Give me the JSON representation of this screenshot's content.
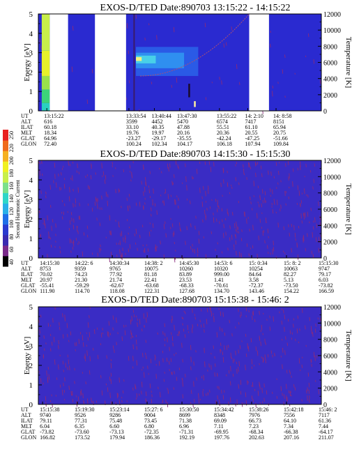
{
  "colorbar": {
    "label": "Second Harmonic Current",
    "ticks": [
      "40",
      "60",
      "80",
      "100",
      "120",
      "140",
      "160",
      "180",
      "200",
      "220",
      "250"
    ],
    "colors": [
      "#000000",
      "#7a2a8a",
      "#3a2ab0",
      "#2a3acf",
      "#1f6fe8",
      "#29b0e8",
      "#2fd6c8",
      "#7ce08a",
      "#c8ef4a",
      "#f0f020",
      "#f5b020",
      "#ef6a1a",
      "#e82020"
    ]
  },
  "chart_data": [
    {
      "type": "heatmap",
      "title": "EXOS-D/TED   Date:890703  13:15:22 - 14:15:22",
      "ylabel": "Energy [eV]",
      "y2label": "Temperature [K]",
      "ylim": [
        0,
        5
      ],
      "y2lim": [
        0,
        12000
      ],
      "yticks": [
        "0",
        "1",
        "2",
        "3",
        "4",
        "5"
      ],
      "y2ticks": [
        "0",
        "2000",
        "4000",
        "6000",
        "8000",
        "10000",
        "12000"
      ],
      "data_gaps": [
        [
          0.04,
          0.105
        ],
        [
          0.2,
          0.31
        ],
        [
          0.745,
          0.815
        ]
      ],
      "background_color": "#2a2ad0",
      "ephemeris": {
        "labels": [
          "UT",
          "ALT",
          "ILAT",
          "MLT",
          "GLAT",
          "GLON"
        ],
        "columns": [
          [
            "13:15:22",
            "616",
            "60.18",
            "18.34",
            "64.96",
            "72.40"
          ],
          [
            "13:33:54",
            "3599",
            "33.10",
            "19.76",
            "-23.27",
            "100.24"
          ],
          [
            "13:40:44",
            "4452",
            "40.35",
            "19.97",
            "-29.17",
            "102.34"
          ],
          [
            "13:47:30",
            "5470",
            "47.88",
            "20.16",
            "-35.55",
            "104.17"
          ],
          [
            "13:55:22",
            "6574",
            "55.51",
            "20.36",
            "-42.24",
            "106.18"
          ],
          [
            "14: 2:10",
            "7417",
            "61.10",
            "20.55",
            "-47.25",
            "107.94"
          ],
          [
            "14: 8:58",
            "8151",
            "65.94",
            "20.75",
            "-51.66",
            "109.84"
          ]
        ]
      }
    },
    {
      "type": "heatmap",
      "title": "EXOS-D/TED   Date:890703  14:15:30 - 15:15:30",
      "ylabel": "Energy [eV]",
      "y2label": "Temperature [K]",
      "ylim": [
        0,
        5
      ],
      "y2lim": [
        0,
        12000
      ],
      "yticks": [
        "0",
        "1",
        "2",
        "3",
        "4",
        "5"
      ],
      "y2ticks": [
        "0",
        "2000",
        "4000",
        "6000",
        "8000",
        "10000",
        "12000"
      ],
      "background_color": "#3a2cc4",
      "ephemeris": {
        "labels": [
          "UT",
          "ALT",
          "ILAT",
          "MLT",
          "GLAT",
          "GLON"
        ],
        "columns": [
          [
            "14:15:30",
            "8753",
            "70.02",
            "20.97",
            "-55.41",
            "111.90"
          ],
          [
            "14:22: 6",
            "9359",
            "74.23",
            "21.30",
            "-59.29",
            "114.70"
          ],
          [
            "14:30:34",
            "9765",
            "77.92",
            "21.74",
            "-62.67",
            "118.08"
          ],
          [
            "14:38: 2",
            "10075",
            "81.18",
            "22.41",
            "-63.68",
            "122.31"
          ],
          [
            "14:45:30",
            "10260",
            "83.89",
            "23.53",
            "-68.33",
            "127.68"
          ],
          [
            "14:53: 6",
            "10320",
            "999.00",
            "1.41",
            "-70.61",
            "134.70"
          ],
          [
            "15: 0:34",
            "10254",
            "84.64",
            "3.58",
            "-72.37",
            "143.46"
          ],
          [
            "15: 8: 2",
            "10063",
            "82.27",
            "5.13",
            "-73.50",
            "154.22"
          ],
          [
            "15:15:30",
            "9747",
            "79.17",
            "6.03",
            "-73.82",
            "166.59"
          ]
        ]
      }
    },
    {
      "type": "heatmap",
      "title": "EXOS-D/TED   Date:890703  15:15:38 - 15:46: 2",
      "ylabel": "Energy [eV]",
      "y2label": "Temperature [K]",
      "ylim": [
        0,
        5
      ],
      "y2lim": [
        0,
        12000
      ],
      "yticks": [
        "0",
        "1",
        "2",
        "3",
        "4",
        "5"
      ],
      "y2ticks": [
        "0",
        "2000",
        "4000",
        "6000",
        "8000",
        "10000",
        "12000"
      ],
      "background_color": "#3a2cc4",
      "ephemeris": {
        "labels": [
          "UT",
          "ALT",
          "ILAT",
          "MLT",
          "GLAT",
          "GLON"
        ],
        "columns": [
          [
            "15:15:38",
            "9740",
            "79.11",
            "6.04",
            "-73.82",
            "166.82"
          ],
          [
            "15:19:30",
            "9526",
            "77.31",
            "6.35",
            "-73.60",
            "173.52"
          ],
          [
            "15:23:14",
            "9286",
            "75.48",
            "6.60",
            "-73.13",
            "179.94"
          ],
          [
            "15:27: 6",
            "9004",
            "73.45",
            "6.80",
            "-72.35",
            "186.36"
          ],
          [
            "15:30:50",
            "8699",
            "71.38",
            "6.96",
            "-71.31",
            "192.19"
          ],
          [
            "15:34:42",
            "8348",
            "69.09",
            "7.11",
            "-69.95",
            "197.76"
          ],
          [
            "15:38:26",
            "7976",
            "66.73",
            "7.23",
            "-68.34",
            "202.63"
          ],
          [
            "15:42:18",
            "7556",
            "64.10",
            "7.34",
            "-66.38",
            "207.16"
          ],
          [
            "15:46: 2",
            "7117",
            "61.36",
            "7.44",
            "-64.17",
            "211.07"
          ]
        ]
      }
    }
  ]
}
